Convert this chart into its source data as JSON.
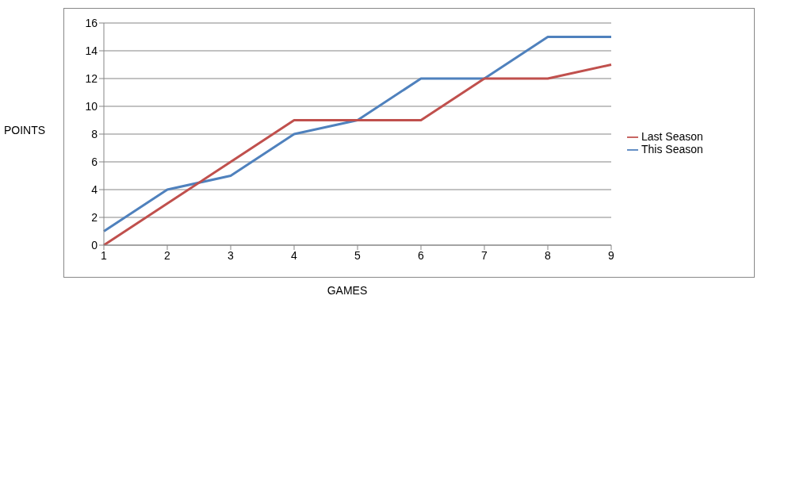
{
  "chart_data": {
    "type": "line",
    "xlabel": "GAMES",
    "ylabel": "POINTS",
    "categories": [
      "1",
      "2",
      "3",
      "4",
      "5",
      "6",
      "7",
      "8",
      "9"
    ],
    "series": [
      {
        "name": "This Season",
        "color": "#4f81bd",
        "values": [
          1,
          4,
          5,
          8,
          9,
          12,
          12,
          15,
          15
        ]
      },
      {
        "name": "Last Season",
        "color": "#c0504d",
        "values": [
          0,
          3,
          6,
          9,
          9,
          9,
          12,
          12,
          13
        ]
      }
    ],
    "ylim": [
      0,
      16
    ],
    "yticks": [
      0,
      2,
      4,
      6,
      8,
      10,
      12,
      14,
      16
    ],
    "grid": "y",
    "legend": "right",
    "marker": "none",
    "line_style": "solid"
  }
}
